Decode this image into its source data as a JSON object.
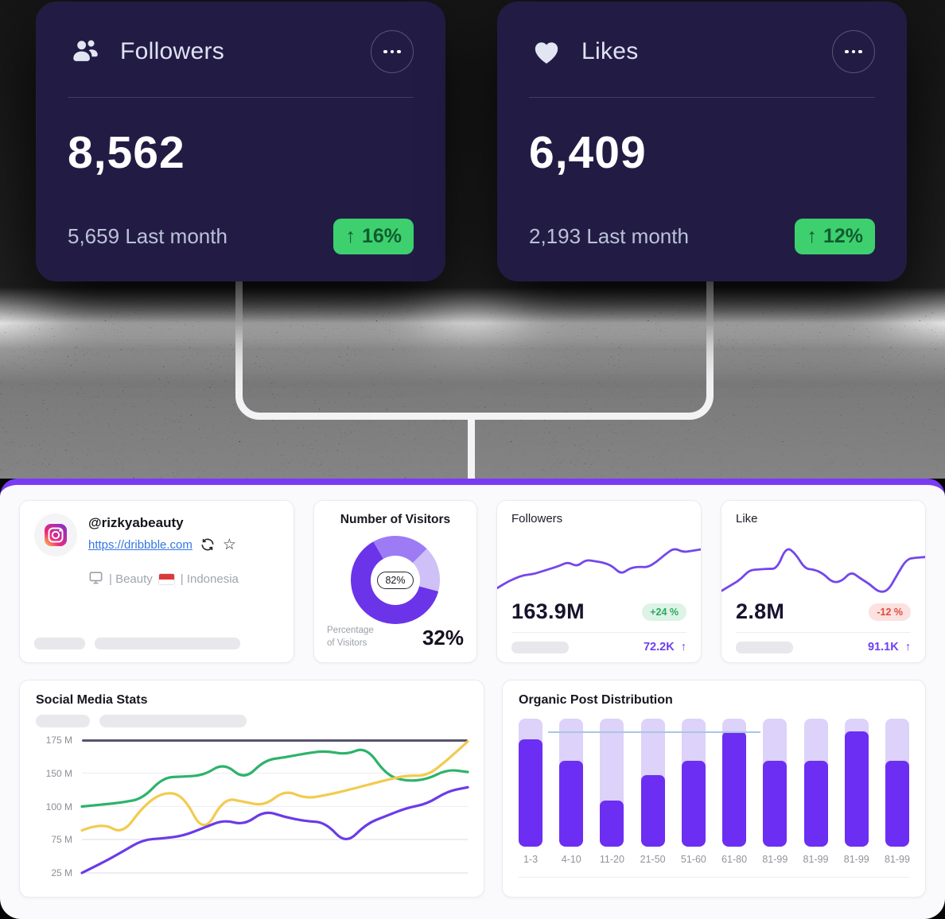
{
  "stat_cards": [
    {
      "title": "Followers",
      "value": "8,562",
      "last_value": "5,659",
      "last_label": "Last month",
      "arrow": "↑",
      "change": "16%"
    },
    {
      "title": "Likes",
      "value": "6,409",
      "last_value": "2,193",
      "last_label": "Last month",
      "arrow": "↑",
      "change": "12%"
    }
  ],
  "profile": {
    "handle": "@rizkyabeauty",
    "link": "https://dribbble.com",
    "category": "| Beauty",
    "country": "| Indonesia"
  },
  "visitors": {
    "title": "Number of Visitors",
    "center_value": "82%",
    "caption_line1": "Percentage",
    "caption_line2": "of Visitors",
    "value": "32%",
    "chart_data": {
      "type": "pie",
      "start_deg": -30,
      "segments": [
        {
          "color": "#9d7bf4",
          "deg": 105
        },
        {
          "color": "#cfc0f8",
          "deg": 60
        },
        {
          "color": "#6b34e9",
          "deg": 195
        }
      ],
      "center_label": "82%"
    }
  },
  "mini_followers": {
    "title": "Followers",
    "value": "163.9M",
    "change": "+24 %",
    "footer_value": "72.2K",
    "arrow": "↑",
    "chart_data": {
      "type": "line",
      "points": [
        14,
        22,
        28,
        33,
        34,
        38,
        42,
        46,
        52,
        45,
        55,
        53,
        51,
        46,
        34,
        43,
        45,
        44,
        52,
        63,
        72,
        66,
        68,
        70
      ]
    }
  },
  "mini_likes": {
    "title": "Like",
    "value": "2.8M",
    "change": "-12 %",
    "footer_value": "91.1K",
    "arrow": "↑",
    "chart_data": {
      "type": "line",
      "points": [
        10,
        18,
        26,
        40,
        41,
        42,
        42,
        74,
        64,
        42,
        41,
        35,
        22,
        24,
        38,
        28,
        20,
        8,
        10,
        34,
        56,
        58,
        59
      ]
    }
  },
  "social": {
    "title": "Social Media Stats",
    "chart_data": {
      "type": "line",
      "y_labels": [
        "175 M",
        "150 M",
        "100 M",
        "75 M",
        "25 M"
      ],
      "y_values": [
        175,
        150,
        100,
        75,
        25
      ],
      "series": [
        {
          "name": "green",
          "color": "#2db36c",
          "values": [
            100,
            103,
            106,
            112,
            144,
            145,
            147,
            158,
            140,
            160,
            162,
            165,
            167,
            164,
            170,
            147,
            138,
            141,
            153,
            151
          ]
        },
        {
          "name": "yellow",
          "color": "#f2cb4e",
          "values": [
            82,
            88,
            79,
            100,
            122,
            117,
            79,
            113,
            107,
            101,
            125,
            112,
            117,
            124,
            132,
            140,
            147,
            146,
            160,
            174
          ]
        },
        {
          "name": "purple",
          "color": "#6b3be8",
          "values": [
            25,
            40,
            57,
            75,
            76,
            78,
            84,
            90,
            86,
            97,
            92,
            89,
            88,
            68,
            87,
            93,
            99,
            104,
            123,
            129
          ]
        }
      ]
    }
  },
  "organic": {
    "title": "Organic Post Distribution",
    "chart_data": {
      "type": "bar",
      "categories": [
        "1-3",
        "4-10",
        "11-20",
        "21-50",
        "51-60",
        "61-80",
        "81-99",
        "81-99",
        "81-99",
        "81-99"
      ],
      "values": [
        84,
        67,
        36,
        56,
        67,
        90,
        67,
        67,
        90,
        67
      ],
      "unit": "percent-of-track",
      "threshold_percent": 90
    }
  },
  "colors": {
    "panel_bar": "#7a3bf5",
    "spark": "#7447ea",
    "badge_green_bg": "#3ed06e",
    "bar_fill": "#6c2ef2",
    "bar_track": "#ddd2f9",
    "threshold_line": "#a9c6e4"
  }
}
